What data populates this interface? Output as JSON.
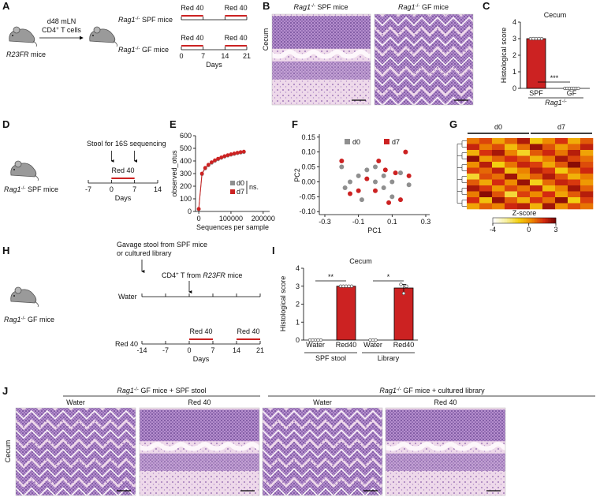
{
  "A": {
    "letter": "A",
    "donor": {
      "gene": "R23FR",
      "rest": " mice"
    },
    "transfer_site": "d48 mLN",
    "transfer": {
      "main": "CD4",
      "sup": "+",
      "rest": " T cells"
    },
    "groups": [
      {
        "gene": "Rag1",
        "sup": "-/-",
        "rest": " SPF mice"
      },
      {
        "gene": "Rag1",
        "sup": "-/-",
        "rest": " GF mice"
      }
    ],
    "treatment": "Red 40",
    "periods": [
      [
        0,
        7
      ],
      [
        14,
        21
      ]
    ],
    "xlim": [
      0,
      21
    ],
    "xticks": [
      0,
      7,
      14,
      21
    ],
    "xlabel": "Days"
  },
  "B": {
    "letter": "B",
    "titles": [
      {
        "gene": "Rag1",
        "sup": "-/-",
        "rest": " SPF mice"
      },
      {
        "gene": "Rag1",
        "sup": "-/-",
        "rest": " GF mice"
      }
    ],
    "ylabel": "Cecum"
  },
  "C": {
    "letter": "C",
    "title": "Cecum",
    "ylabel": "Histological score",
    "categories": [
      "SPF",
      "GF"
    ],
    "values": [
      3,
      0
    ],
    "points": [
      [
        3,
        3,
        3,
        3,
        3
      ],
      [
        0,
        0,
        0,
        0,
        0,
        0,
        0
      ]
    ],
    "colors": [
      "#cc2222",
      "#ffffff"
    ],
    "ylim": [
      0,
      4
    ],
    "yticks": [
      0,
      1,
      2,
      3,
      4
    ],
    "significance": "***",
    "group": {
      "gene": "Rag1",
      "sup": "-/-"
    }
  },
  "D": {
    "letter": "D",
    "mouse": {
      "gene": "Rag1",
      "sup": "-/-",
      "rest": " SPF mice"
    },
    "sampling": "Stool for 16S sequencing",
    "sampling_days": [
      0,
      7
    ],
    "treatment": "Red 40",
    "periods": [
      [
        0,
        7
      ]
    ],
    "xlim": [
      -7,
      14
    ],
    "xticks": [
      -7,
      0,
      7,
      14
    ],
    "xlabel": "Days"
  },
  "E": {
    "letter": "E",
    "ylabel": "observed_otus",
    "xlabel": "Sequences per sample",
    "x": [
      0,
      10000,
      20000,
      30000,
      40000,
      50000,
      60000,
      70000,
      80000,
      90000,
      100000,
      110000,
      120000,
      130000,
      140000
    ],
    "series": [
      {
        "name": "d0",
        "color": "#8f8f8f",
        "values": [
          18,
          295,
          340,
          365,
          385,
          400,
          413,
          424,
          434,
          442,
          449,
          455,
          461,
          466,
          470
        ]
      },
      {
        "name": "d7",
        "color": "#cc2222",
        "values": [
          20,
          300,
          345,
          370,
          390,
          405,
          418,
          428,
          438,
          446,
          453,
          459,
          465,
          470,
          474
        ]
      }
    ],
    "annotation": "ns.",
    "xlim": [
      -10000,
      220000
    ],
    "xticks": [
      0,
      100000,
      200000
    ],
    "ylim": [
      0,
      600
    ],
    "yticks": [
      0,
      100,
      200,
      300,
      400,
      500,
      600
    ]
  },
  "F": {
    "letter": "F",
    "xlabel": "PC1",
    "ylabel": "PC2",
    "xlim": [
      -0.3,
      0.3
    ],
    "xticks": [
      -0.3,
      -0.1,
      0.1,
      0.3
    ],
    "ylim": [
      -0.11,
      0.16
    ],
    "yticks": [
      {
        "value": -0.1,
        "label": "-0.10"
      },
      -0.05,
      {
        "value": 0,
        "label": "0.00"
      },
      0.05,
      {
        "value": 0.1,
        "label": "0.10"
      },
      0.15
    ],
    "series": [
      {
        "name": "d0",
        "color": "#8f8f8f",
        "x": [
          -0.2,
          -0.15,
          -0.1,
          -0.05,
          0,
          0.05,
          0.1,
          0.15,
          0.2,
          -0.18,
          0,
          0.1,
          -0.08,
          0.05
        ],
        "y": [
          0.05,
          0,
          0.02,
          0.04,
          0,
          -0.02,
          0,
          0.03,
          -0.01,
          -0.02,
          0.05,
          -0.05,
          -0.06,
          0.02
        ]
      },
      {
        "name": "d7",
        "color": "#cc2222",
        "x": [
          -0.2,
          -0.15,
          -0.05,
          0,
          0.02,
          0.08,
          0.12,
          0.18,
          0.2,
          -0.1,
          0.15,
          0.06
        ],
        "y": [
          0.07,
          -0.04,
          0.01,
          -0.03,
          0.07,
          -0.07,
          0.03,
          0.1,
          0.02,
          -0.03,
          -0.06,
          0.04
        ]
      }
    ]
  },
  "G": {
    "letter": "G",
    "groups": [
      "d0",
      "d7"
    ],
    "matrix": [
      [
        0.5,
        1.2,
        -0.3,
        0.8,
        2.1,
        -1.0,
        0.2,
        1.5,
        -0.5,
        0.9
      ],
      [
        1.8,
        0.4,
        1.1,
        -0.8,
        0.6,
        2.4,
        1.0,
        -0.2,
        0.7,
        1.9
      ],
      [
        -0.6,
        1.5,
        2.2,
        0.3,
        -1.4,
        0.9,
        1.7,
        0.5,
        2.0,
        -0.3
      ],
      [
        2.5,
        -0.2,
        0.8,
        1.6,
        1.0,
        -0.7,
        0.4,
        2.2,
        1.2,
        0.6
      ],
      [
        0.1,
        2.0,
        -1.2,
        0.5,
        1.8,
        1.3,
        -0.4,
        0.9,
        2.6,
        1.1
      ],
      [
        1.3,
        0.7,
        1.9,
        -0.9,
        0.3,
        2.0,
        1.4,
        -1.1,
        0.5,
        1.7
      ],
      [
        -1.5,
        1.1,
        0.6,
        2.3,
        -0.2,
        0.8,
        2.1,
        1.0,
        -0.6,
        0.4
      ],
      [
        0.9,
        -0.4,
        1.6,
        0.2,
        2.4,
        -1.3,
        0.7,
        1.8,
        1.4,
        -0.1
      ],
      [
        2.2,
        1.4,
        -0.1,
        1.2,
        0.5,
        1.9,
        -0.8,
        0.3,
        2.3,
        0.8
      ],
      [
        0.4,
        2.6,
        1.0,
        -1.6,
        1.3,
        0.2,
        1.6,
        -0.3,
        0.9,
        2.0
      ],
      [
        1.6,
        -0.9,
        2.4,
        0.9,
        -0.5,
        1.5,
        0.6,
        2.5,
        -1.2,
        1.3
      ],
      [
        -0.3,
        0.8,
        0.3,
        1.7,
        2.0,
        -0.6,
        2.3,
        0.1,
        1.1,
        0.5
      ]
    ],
    "colorbar": {
      "label": "Z-score",
      "lim": [
        -4,
        3
      ],
      "ticks": [
        -4,
        0,
        3
      ],
      "colors": [
        "#ffffff",
        "#f7f0a0",
        "#f3cf10",
        "#ee8a00",
        "#d42a10",
        "#6b0000"
      ]
    }
  },
  "H": {
    "letter": "H",
    "mouse": {
      "gene": "Rag1",
      "sup": "-/-",
      "rest": " GF mice"
    },
    "gavage": [
      "Gavage stool from SPF mice",
      "or cultured library"
    ],
    "transfer": {
      "main": "CD4",
      "sup": "+",
      "rest": " T from ",
      "gene": "R23FR",
      "tail": " mice"
    },
    "rows": [
      "Water",
      "Red 40"
    ],
    "treatment": "Red 40",
    "periods": [
      [
        0,
        7
      ],
      [
        14,
        21
      ]
    ],
    "gavage_day": -14,
    "transfer_day": 0,
    "xlim": [
      -14,
      21
    ],
    "xticks": [
      -14,
      -7,
      0,
      7,
      14,
      21
    ],
    "xlabel": "Days"
  },
  "I": {
    "letter": "I",
    "title": "Cecum",
    "ylabel": "Histological score",
    "categories": [
      "Water",
      "Red40",
      "Water",
      "Red40"
    ],
    "values": [
      0,
      3,
      0,
      2.9
    ],
    "errors": [
      0,
      0,
      0,
      0.2
    ],
    "points": [
      [
        0,
        0,
        0,
        0,
        0
      ],
      [
        3,
        3,
        3,
        3,
        3
      ],
      [
        0,
        0,
        0
      ],
      [
        3.1,
        2.6,
        3.0
      ]
    ],
    "colors": [
      "#ffffff",
      "#cc2222",
      "#ffffff",
      "#cc2222"
    ],
    "groups": [
      "SPF stool",
      "Library"
    ],
    "significance": [
      "**",
      "*"
    ],
    "ylim": [
      0,
      4
    ],
    "yticks": [
      0,
      1,
      2,
      3,
      4
    ]
  },
  "J": {
    "letter": "J",
    "groups": [
      {
        "gene": "Rag1",
        "sup": "-/-",
        "rest": " GF mice + SPF stool"
      },
      {
        "gene": "Rag1",
        "sup": "-/-",
        "rest": " GF mice + cultured library"
      }
    ],
    "conditions": [
      "Water",
      "Red 40",
      "Water",
      "Red 40"
    ],
    "ylabel": "Cecum"
  }
}
